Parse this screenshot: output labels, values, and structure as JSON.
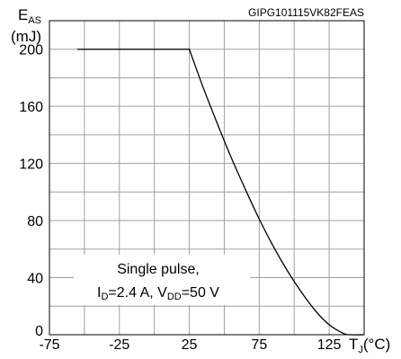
{
  "chart_data": {
    "type": "line",
    "code_label": "GIPG101115VK82FEAS",
    "ylabel": {
      "main": "E",
      "sub": "AS",
      "unit": "(mJ)"
    },
    "xlabel": {
      "main": "T",
      "sub": "J",
      "unit": "(°C)"
    },
    "xlim": [
      -75,
      150
    ],
    "ylim": [
      0,
      220
    ],
    "x_ticks": [
      -75,
      -25,
      25,
      75,
      125
    ],
    "y_ticks": [
      0,
      40,
      80,
      120,
      160,
      200
    ],
    "grid": true,
    "annotation": {
      "line1": "Single pulse,",
      "id_main": "I",
      "id_sub": "D",
      "id_val": "=2.4 A, V",
      "vdd_sub": "DD",
      "vdd_val": "=50 V"
    },
    "series": [
      {
        "x": [
          -55,
          25,
          35,
          45,
          55,
          65,
          75,
          85,
          95,
          105,
          115,
          125,
          135,
          140,
          150
        ],
        "y": [
          200,
          200,
          173,
          148,
          124,
          102,
          81,
          62,
          45,
          30,
          17,
          7,
          1,
          0,
          0
        ]
      }
    ]
  }
}
